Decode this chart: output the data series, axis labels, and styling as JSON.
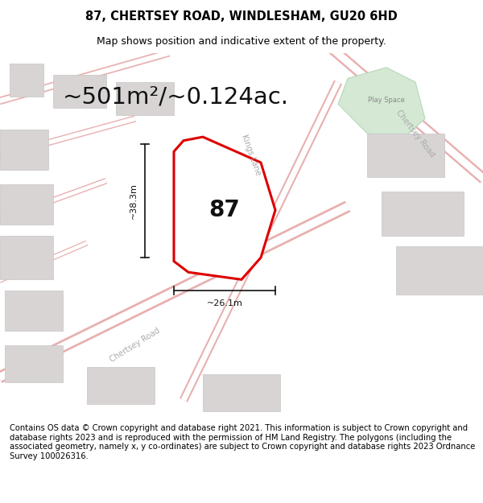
{
  "title": "87, CHERTSEY ROAD, WINDLESHAM, GU20 6HD",
  "subtitle": "Map shows position and indicative extent of the property.",
  "area_text": "~501m²/~0.124ac.",
  "width_label": "~26.1m",
  "height_label": "~38.3m",
  "property_number": "87",
  "play_space_label": "Play Space",
  "kings_lane_label": "Kings Lane",
  "chertsey_road_label": "Chertsey Road",
  "chertsey_road_label2": "Chertsey Road",
  "footer_text": "Contains OS data © Crown copyright and database right 2021. This information is subject to Crown copyright and database rights 2023 and is reproduced with the permission of HM Land Registry. The polygons (including the associated geometry, namely x, y co-ordinates) are subject to Crown copyright and database rights 2023 Ordnance Survey 100026316.",
  "map_bg": "#ede8e8",
  "road_color": "#ffffff",
  "road_edge": "#e8b0b0",
  "green_fill": "#d4e8d4",
  "green_edge": "#b8d8b8",
  "property_fill": "#ffffff",
  "property_edge": "#dd0000",
  "building_fill": "#d8d4d4",
  "building_edge": "#c8c4c4",
  "dim_color": "#111111",
  "road_label_color": "#aaaaaa",
  "title_fontsize": 10.5,
  "subtitle_fontsize": 9,
  "area_fontsize": 21,
  "number_fontsize": 20,
  "footer_fontsize": 7.2,
  "road_label_fontsize": 7
}
